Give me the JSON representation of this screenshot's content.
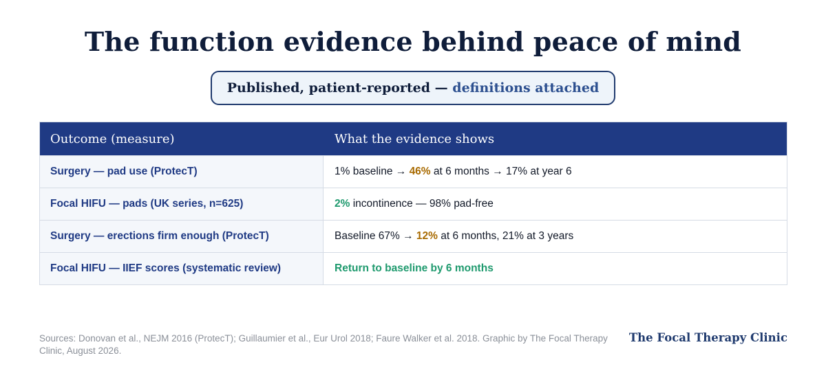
{
  "title": "The function evidence behind peace of mind",
  "subtitle": {
    "lead": "Published, patient-reported — ",
    "accent": "definitions attached"
  },
  "table": {
    "headers": [
      "Outcome (measure)",
      "What the evidence shows"
    ],
    "rows": [
      {
        "outcome": "Surgery — pad use (ProtecT)",
        "evidence": {
          "pre": "1% baseline → ",
          "highlight": "46%",
          "post": " at 6 months → 17% at year 6"
        }
      },
      {
        "outcome": "Focal HIFU — pads (UK series, n=625)",
        "evidence": {
          "pre": "",
          "highlight": "2%",
          "post": " incontinence — 98% pad-free"
        }
      },
      {
        "outcome": "Surgery — erections firm enough (ProtecT)",
        "evidence": {
          "pre": "Baseline 67% → ",
          "highlight": "12%",
          "post": " at 6 months, 21% at 3 years"
        }
      },
      {
        "outcome": "Focal HIFU — IIEF scores (systematic review)",
        "evidence": {
          "pre": "",
          "highlight": "Return to baseline by 6 months",
          "post": ""
        }
      }
    ]
  },
  "footer": {
    "sources": "Sources: Donovan et al., NEJM 2016 (ProtecT); Guillaumier et al., Eur Urol 2018; Faure Walker et al. 2018. Graphic by The Focal Therapy Clinic, August 2026.",
    "brand": "The Focal Therapy Clinic"
  },
  "colors": {
    "header_bg": "#1f3a84",
    "surgery_highlight": "#a86a00",
    "hifu_highlight": "#1f9a6e"
  }
}
